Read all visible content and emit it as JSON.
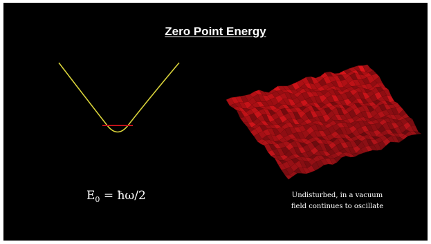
{
  "slide": {
    "title": "Zero Point Energy",
    "formula": {
      "symbol": "E",
      "subscript": "0",
      "rhs": " = ħω/2"
    },
    "caption": {
      "line1": "Undisturbed, in a vacuum",
      "line2": "field continues to oscillate"
    }
  },
  "colors": {
    "background": "#000000",
    "parabola": "#d8d23a",
    "ground_state_line": "#c0121a",
    "surface": "#b3141a",
    "text": "#ffffff"
  },
  "illustrations": {
    "left": "harmonic-potential-well",
    "right": "vacuum-field-surface"
  }
}
